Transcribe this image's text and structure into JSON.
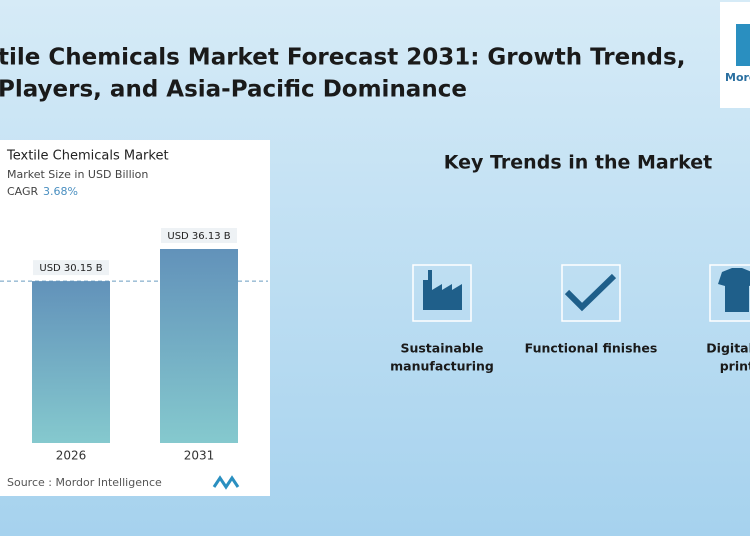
{
  "header": {
    "title_lines": [
      "tile Chemicals Market Forecast 2031: Growth Trends,",
      "Players, and Asia-Pacific Dominance"
    ],
    "logo": "Mord"
  },
  "chart_data": {
    "type": "bar",
    "title": "Textile Chemicals Market",
    "subtitle": "Market Size in USD Billion",
    "cagr_label": "CAGR",
    "cagr": "3.68%",
    "categories": [
      "2026",
      "2031"
    ],
    "values": [
      30.15,
      36.13
    ],
    "value_labels": [
      "USD 30.15 B",
      "USD 36.13 B"
    ],
    "color": "#6a9cc0",
    "source": "Source :  Mordor Intelligence"
  },
  "trends": {
    "title": "Key Trends in the Market",
    "items": [
      {
        "lines": [
          "Sustainable",
          "manufacturing"
        ]
      },
      {
        "lines": [
          "Functional finishes"
        ]
      },
      {
        "lines": [
          "Digital te",
          "printi"
        ]
      }
    ]
  }
}
